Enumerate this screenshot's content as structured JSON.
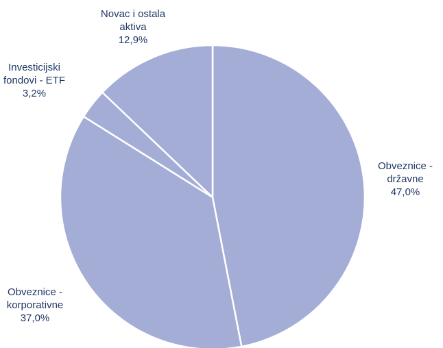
{
  "chart_data": {
    "type": "pie",
    "slice_color": "#a3add6",
    "label_color": "#1f3864",
    "slices": [
      {
        "label_lines": [
          "Obveznice -",
          "državne"
        ],
        "value_text": "47,0%",
        "value": 47.0
      },
      {
        "label_lines": [
          "Obveznice -",
          "korporativne"
        ],
        "value_text": "37,0%",
        "value": 37.0
      },
      {
        "label_lines": [
          "Investicijski",
          "fondovi - ETF"
        ],
        "value_text": "3,2%",
        "value": 3.2
      },
      {
        "label_lines": [
          "Novac i ostala",
          "aktiva"
        ],
        "value_text": "12,9%",
        "value": 12.9
      }
    ]
  }
}
